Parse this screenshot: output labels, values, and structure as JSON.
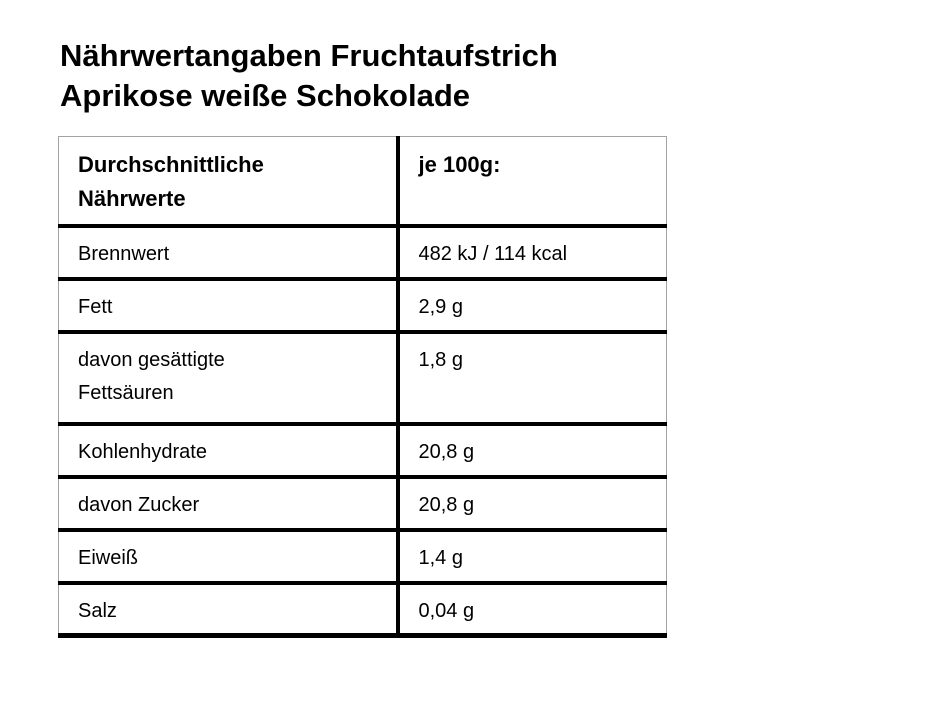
{
  "title": {
    "line1": "Nährwertangaben Fruchtaufstrich",
    "line2": "Aprikose weiße Schokolade"
  },
  "table": {
    "header": {
      "name_col": "Durchschnittliche Nährwerte",
      "amount_col": "je 100g:"
    },
    "rows": [
      {
        "label": "Brennwert",
        "value": "482 kJ / 114 kcal"
      },
      {
        "label": "Fett",
        "value": "2,9 g"
      },
      {
        "label": "davon gesättigte Fettsäuren",
        "value": "1,8 g"
      },
      {
        "label": "Kohlenhydrate",
        "value": "20,8 g"
      },
      {
        "label": "davon Zucker",
        "value": "20,8 g"
      },
      {
        "label": "Eiweiß",
        "value": "1,4 g"
      },
      {
        "label": "Salz",
        "value": "0,04 g"
      }
    ]
  },
  "colors": {
    "text": "#000000",
    "row_divider": "#000000",
    "outer_border": "#a3a3a3",
    "background": "#ffffff"
  }
}
